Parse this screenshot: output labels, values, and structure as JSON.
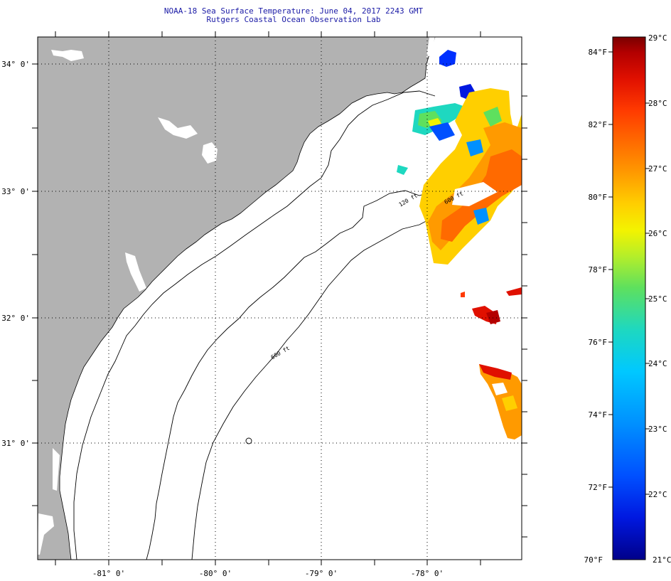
{
  "header": {
    "title": "NOAA-18 Sea Surface Temperature:  June 04, 2017 2243 GMT",
    "subtitle": "Rutgers Coastal Ocean Observation Lab"
  },
  "map": {
    "lat_labels": [
      "34° 0'",
      "33° 0'",
      "32° 0'",
      "31° 0'"
    ],
    "lon_labels": [
      "-81° 0'",
      "-80° 0'",
      "-79° 0'",
      "-78° 0'"
    ],
    "isobaths": [
      "120 ft",
      "600 ft",
      "600 ft"
    ]
  },
  "colorbar": {
    "fahrenheit_labels": [
      "84°F",
      "82°F",
      "80°F",
      "78°F",
      "76°F",
      "74°F",
      "72°F",
      "70°F"
    ],
    "celsius_labels": [
      "29°C",
      "28°C",
      "27°C",
      "26°C",
      "25°C",
      "24°C",
      "23°C",
      "22°C",
      "21°C"
    ],
    "colors": [
      "#7a0000",
      "#b30000",
      "#e01000",
      "#ff3a00",
      "#ff6a00",
      "#ff9a00",
      "#ffcf00",
      "#f3f300",
      "#b4ee2a",
      "#5ee05e",
      "#1ed8c0",
      "#00c8ff",
      "#0090ff",
      "#0050ff",
      "#0018e0",
      "#00008a"
    ]
  }
}
